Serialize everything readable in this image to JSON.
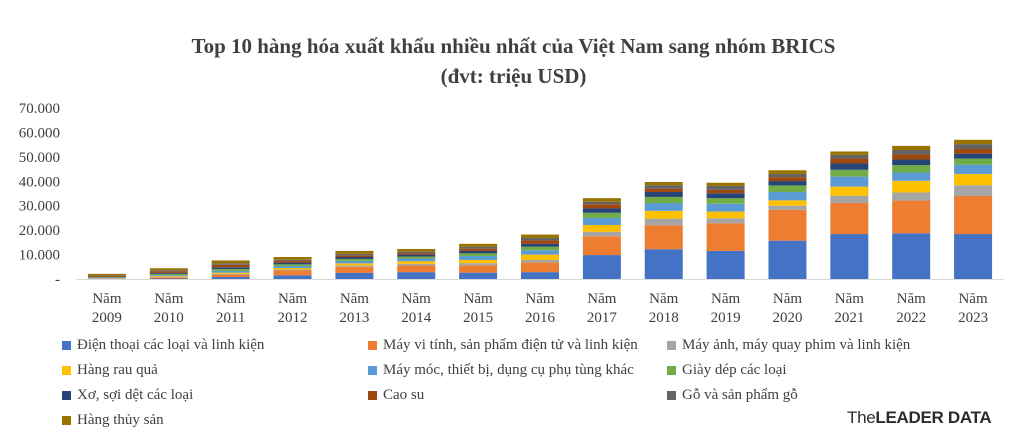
{
  "chart_data": {
    "type": "bar",
    "stacked": true,
    "title": "Top 10 hàng hóa xuất khẩu nhiều nhất của Việt Nam sang nhóm BRICS",
    "subtitle": "(đvt: triệu USD)",
    "categories": [
      [
        "Năm",
        "2009"
      ],
      [
        "Năm",
        "2010"
      ],
      [
        "Năm",
        "2011"
      ],
      [
        "Năm",
        "2012"
      ],
      [
        "Năm",
        "2013"
      ],
      [
        "Năm",
        "2014"
      ],
      [
        "Năm",
        "2015"
      ],
      [
        "Năm",
        "2016"
      ],
      [
        "Năm",
        "2017"
      ],
      [
        "Năm",
        "2018"
      ],
      [
        "Năm",
        "2019"
      ],
      [
        "Năm",
        "2020"
      ],
      [
        "Năm",
        "2021"
      ],
      [
        "Năm",
        "2022"
      ],
      [
        "Năm",
        "2023"
      ]
    ],
    "ylim": [
      0,
      70000
    ],
    "yticks": [
      0,
      10000,
      20000,
      30000,
      40000,
      50000,
      60000,
      70000
    ],
    "ytick_labels": [
      "-",
      "10.000",
      "20.000",
      "30.000",
      "40.000",
      "50.000",
      "60.000",
      "70.000"
    ],
    "grid": false,
    "legend_position": "bottom",
    "series": [
      {
        "name": "Điện thoại các loại và linh kiện",
        "color": "#4472c4",
        "values": [
          50,
          200,
          800,
          1500,
          2500,
          2800,
          2600,
          2800,
          9800,
          12200,
          11500,
          15700,
          18400,
          18700,
          18400
        ]
      },
      {
        "name": "Máy vi tính, sản phẩm điện tử và linh kiện",
        "color": "#ed7d31",
        "values": [
          100,
          500,
          1000,
          2000,
          2500,
          2700,
          3000,
          4000,
          7700,
          9800,
          11300,
          12600,
          12700,
          13400,
          15600
        ]
      },
      {
        "name": "Máy ảnh, máy quay phim và linh kiện",
        "color": "#a5a5a5",
        "values": [
          50,
          200,
          300,
          400,
          500,
          700,
          900,
          1000,
          1800,
          2700,
          2100,
          1700,
          3000,
          3300,
          4400
        ]
      },
      {
        "name": "Hàng rau quả",
        "color": "#ffc000",
        "values": [
          100,
          300,
          500,
          600,
          900,
          1100,
          1300,
          2200,
          2800,
          3200,
          2700,
          2200,
          3700,
          4800,
          4600
        ]
      },
      {
        "name": "Máy móc, thiết bị, dụng cụ phụ tùng khác",
        "color": "#5b9bd5",
        "values": [
          150,
          400,
          700,
          800,
          1000,
          1100,
          1600,
          1800,
          2900,
          3200,
          3200,
          3400,
          4100,
          3400,
          3800
        ]
      },
      {
        "name": "Giày dép các loại",
        "color": "#70ad47",
        "values": [
          250,
          500,
          800,
          700,
          800,
          800,
          1100,
          1400,
          2100,
          2500,
          2300,
          2700,
          2800,
          3000,
          2500
        ]
      },
      {
        "name": "Xơ, sợi dệt các loại",
        "color": "#264478",
        "values": [
          150,
          400,
          700,
          700,
          800,
          800,
          1000,
          1200,
          1800,
          2000,
          2000,
          1800,
          2600,
          2300,
          2000
        ]
      },
      {
        "name": "Cao su",
        "color": "#9e480e",
        "values": [
          400,
          700,
          1000,
          700,
          700,
          600,
          900,
          1400,
          1700,
          1300,
          1400,
          1600,
          2000,
          2100,
          1900
        ]
      },
      {
        "name": "Gỗ và sản phẩm gỗ",
        "color": "#636363",
        "values": [
          250,
          400,
          600,
          500,
          600,
          600,
          800,
          1000,
          1000,
          1500,
          1600,
          1300,
          1500,
          1800,
          2000
        ]
      },
      {
        "name": "Hàng thủy sản",
        "color": "#997300",
        "values": [
          600,
          800,
          1200,
          1100,
          1200,
          1100,
          1200,
          1400,
          1500,
          1300,
          1300,
          1500,
          1400,
          1700,
          1800
        ]
      }
    ]
  },
  "brand": {
    "part1": "The",
    "part2": "LEADER DATA"
  }
}
